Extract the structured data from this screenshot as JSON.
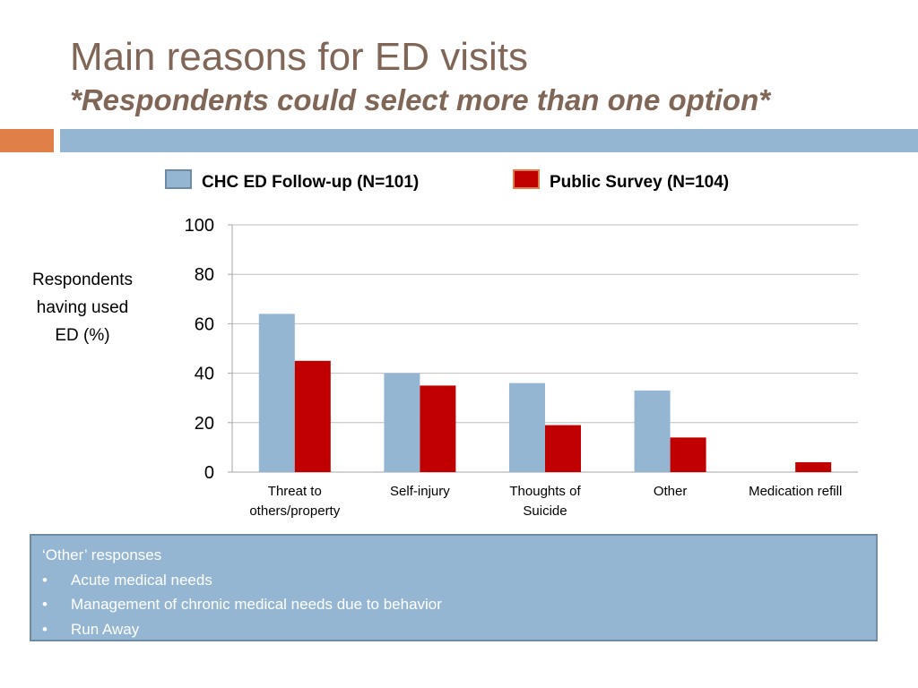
{
  "slide": {
    "title": "Main reasons for ED visits",
    "subtitle": "*Respondents could select more than one option*"
  },
  "chart_data": {
    "type": "bar",
    "categories": [
      [
        "Threat to",
        "others/property"
      ],
      [
        "Self-injury"
      ],
      [
        "Thoughts of",
        "Suicide"
      ],
      [
        "Other"
      ],
      [
        "Medication refill"
      ]
    ],
    "series": [
      {
        "name": "CHC ED Follow-up (N=101)",
        "color": "#94b6d2",
        "values": [
          64,
          40,
          36,
          33,
          0
        ]
      },
      {
        "name": "Public Survey (N=104)",
        "color": "#c00000",
        "values": [
          45,
          35,
          19,
          14,
          4
        ]
      }
    ],
    "ylabel": [
      "Respondents",
      "having used",
      "ED (%)"
    ],
    "ylim": [
      0,
      100
    ],
    "yticks": [
      0,
      20,
      40,
      60,
      80,
      100
    ],
    "grid": true,
    "legend_position": "top"
  },
  "notes": {
    "heading": "‘Other’ responses",
    "bullet_symbol": "•",
    "items": [
      "Acute medical needs",
      "Management of chronic medical needs due to behavior",
      "Run Away"
    ]
  }
}
